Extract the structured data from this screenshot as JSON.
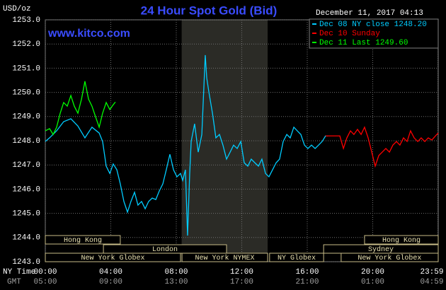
{
  "chart_data": {
    "type": "line",
    "title": "24 Hour Spot Gold (Bid)",
    "site": "www.kitco.com",
    "y_unit": "USD/oz",
    "legend_header": "December 11, 2017 04:13",
    "x_axis_label": "NY Time",
    "x2_axis_label": "GMT",
    "xlim": [
      0,
      24
    ],
    "xticks": [
      {
        "value": 0,
        "label": "00:00"
      },
      {
        "value": 4,
        "label": "04:00"
      },
      {
        "value": 8,
        "label": "08:00"
      },
      {
        "value": 12,
        "label": "12:00"
      },
      {
        "value": 16,
        "label": "16:00"
      },
      {
        "value": 20,
        "label": "20:00"
      },
      {
        "value": 23.98,
        "label": "23:59"
      }
    ],
    "x2tick_labels": [
      "05:00",
      "09:00",
      "13:00",
      "17:00",
      "21:00",
      "01:00",
      "04:59"
    ],
    "ylim": [
      1243,
      1253
    ],
    "yticks": [
      {
        "value": 1253,
        "label": "1253.0"
      },
      {
        "value": 1252,
        "label": "1252.0"
      },
      {
        "value": 1251,
        "label": "1251.0"
      },
      {
        "value": 1250,
        "label": "1250.0"
      },
      {
        "value": 1249,
        "label": "1249.0"
      },
      {
        "value": 1248,
        "label": "1248.0"
      },
      {
        "value": 1247,
        "label": "1247.0"
      },
      {
        "value": 1246,
        "label": "1246.0"
      },
      {
        "value": 1245,
        "label": "1245.0"
      },
      {
        "value": 1244,
        "label": "1244.0"
      },
      {
        "value": 1243,
        "label": "1243.0"
      }
    ],
    "grid": true,
    "shaded_range": [
      8.33,
      13.58
    ],
    "sessions": [
      {
        "name": "Hong Kong",
        "start": 0,
        "end": 4.58,
        "row": 0
      },
      {
        "name": "London",
        "start": 3.55,
        "end": 11.07,
        "row": 1
      },
      {
        "name": "New York Globex",
        "start": 0,
        "end": 8.26,
        "row": 2
      },
      {
        "name": "New York NYMEX",
        "start": 8.35,
        "end": 13.58,
        "row": 2
      },
      {
        "name": "NY Globex",
        "start": 13.7,
        "end": 17.0,
        "row": 2
      },
      {
        "name": "Hong Kong",
        "start": 19.5,
        "end": 24,
        "row": 0
      },
      {
        "name": "Sydney",
        "start": 17.0,
        "end": 24,
        "row": 1
      },
      {
        "name": "New York Globex",
        "start": 18.07,
        "end": 24,
        "row": 2
      }
    ],
    "series": [
      {
        "name": "Dec 08 NY close 1248.20",
        "color": "#00ccff",
        "x": [
          0,
          0.26,
          0.69,
          1.12,
          1.56,
          1.99,
          2.42,
          2.85,
          3.29,
          3.5,
          3.72,
          3.94,
          4.15,
          4.37,
          4.58,
          4.8,
          5.02,
          5.23,
          5.45,
          5.66,
          5.88,
          6.1,
          6.31,
          6.53,
          6.75,
          6.96,
          7.18,
          7.39,
          7.61,
          7.83,
          8.04,
          8.26,
          8.39,
          8.56,
          8.69,
          8.82,
          8.91,
          9.12,
          9.34,
          9.56,
          9.77,
          9.86,
          9.99,
          10.21,
          10.42,
          10.64,
          10.85,
          11.07,
          11.29,
          11.5,
          11.72,
          11.94,
          12.15,
          12.37,
          12.58,
          12.8,
          13.02,
          13.23,
          13.45,
          13.66,
          13.88,
          14.1,
          14.31,
          14.53,
          14.75,
          14.96,
          15.18,
          15.39,
          15.61,
          15.83,
          16.04,
          16.26,
          16.48,
          16.69,
          16.91,
          17.12,
          17.25
        ],
        "values": [
          1247.97,
          1248.12,
          1248.41,
          1248.79,
          1248.91,
          1248.61,
          1248.12,
          1248.56,
          1248.32,
          1247.97,
          1246.95,
          1246.65,
          1247.04,
          1246.8,
          1246.22,
          1245.49,
          1245.05,
          1245.49,
          1245.87,
          1245.34,
          1245.49,
          1245.19,
          1245.49,
          1245.63,
          1245.57,
          1245.92,
          1246.22,
          1246.8,
          1247.44,
          1246.8,
          1246.51,
          1246.65,
          1246.36,
          1246.8,
          1244.08,
          1246.65,
          1247.97,
          1248.7,
          1247.53,
          1248.26,
          1251.54,
          1250.6,
          1250.02,
          1249.14,
          1248.12,
          1248.26,
          1247.82,
          1247.24,
          1247.53,
          1247.82,
          1247.68,
          1247.97,
          1247.09,
          1246.95,
          1247.24,
          1247.09,
          1246.95,
          1247.24,
          1246.65,
          1246.51,
          1246.8,
          1247.09,
          1247.24,
          1247.97,
          1248.26,
          1248.12,
          1248.56,
          1248.41,
          1248.26,
          1247.82,
          1247.68,
          1247.82,
          1247.68,
          1247.82,
          1247.97,
          1248.2,
          1248.2
        ]
      },
      {
        "name": "Dec 10 Sunday",
        "color": "#ff0000",
        "x": [
          17.12,
          17.99,
          18.21,
          18.42,
          18.64,
          18.85,
          19.07,
          19.29,
          19.5,
          19.72,
          19.94,
          20.15,
          20.37,
          20.58,
          20.8,
          21.02,
          21.23,
          21.45,
          21.66,
          21.88,
          22.1,
          22.31,
          22.53,
          22.75,
          22.96,
          23.18,
          23.39,
          23.61,
          23.83,
          24
        ],
        "values": [
          1248.2,
          1248.2,
          1247.68,
          1248.12,
          1248.41,
          1248.26,
          1248.47,
          1248.26,
          1248.56,
          1248.12,
          1247.53,
          1246.95,
          1247.39,
          1247.53,
          1247.68,
          1247.53,
          1247.82,
          1247.97,
          1247.82,
          1248.12,
          1247.97,
          1248.41,
          1248.12,
          1247.97,
          1248.12,
          1247.97,
          1248.12,
          1248.03,
          1248.2,
          1248.32
        ]
      },
      {
        "name": "Dec 11 Last 1249.60",
        "color": "#00ff00",
        "x": [
          0,
          0.26,
          0.48,
          0.69,
          0.91,
          1.12,
          1.34,
          1.56,
          1.77,
          1.99,
          2.21,
          2.42,
          2.64,
          2.85,
          3.07,
          3.29,
          3.5,
          3.72,
          3.94,
          4.15,
          4.28
        ],
        "values": [
          1248.41,
          1248.5,
          1248.26,
          1248.56,
          1249.14,
          1249.58,
          1249.43,
          1249.87,
          1249.43,
          1249.14,
          1249.72,
          1250.46,
          1249.72,
          1249.43,
          1248.99,
          1248.56,
          1249.14,
          1249.58,
          1249.29,
          1249.49,
          1249.6
        ]
      }
    ]
  }
}
